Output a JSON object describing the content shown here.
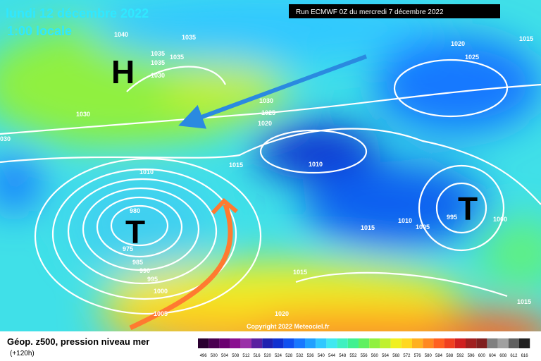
{
  "header": {
    "date": "lundi 12 décembre 2022",
    "time": "1:00 locale",
    "run": "Run ECMWF 0Z du mercredi 7 décembre 2022"
  },
  "copyright": "Copyright 2022 Meteociel.fr",
  "footer": {
    "title": "Géop. z500, pression niveau mer",
    "lead": "(+120h)"
  },
  "centers": [
    "H",
    "T",
    "T"
  ],
  "isobar_labels": [
    "1040",
    "1035",
    "1035",
    "1035",
    "1035",
    "1030",
    "1030",
    "030",
    "1030",
    "1025",
    "1020",
    "1015",
    "1010",
    "1010",
    "980",
    "975",
    "985",
    "990",
    "995",
    "1000",
    "1005",
    "1020",
    "1015",
    "1015",
    "1010",
    "1005",
    "995",
    "1000",
    "1015",
    "1020",
    "1025",
    "1015"
  ],
  "scale": {
    "labels": [
      496,
      500,
      504,
      508,
      512,
      516,
      520,
      524,
      528,
      532,
      536,
      540,
      544,
      548,
      552,
      556,
      560,
      564,
      568,
      572,
      576,
      580,
      584,
      588,
      592,
      596,
      600,
      604,
      608,
      612,
      616
    ],
    "colors": [
      "#2a0030",
      "#4a0050",
      "#6a0070",
      "#8a1090",
      "#9a30a8",
      "#5a20a0",
      "#2020b0",
      "#1030d0",
      "#1050f0",
      "#1878ff",
      "#20a0ff",
      "#30c8ff",
      "#40e8f0",
      "#40f0c0",
      "#40f090",
      "#60f060",
      "#90f040",
      "#c0f030",
      "#f0f020",
      "#ffd820",
      "#ffb020",
      "#ff8820",
      "#ff6020",
      "#f04020",
      "#d02020",
      "#a02020",
      "#802020",
      "#808080",
      "#a0a0a0",
      "#606060",
      "#202020"
    ]
  }
}
